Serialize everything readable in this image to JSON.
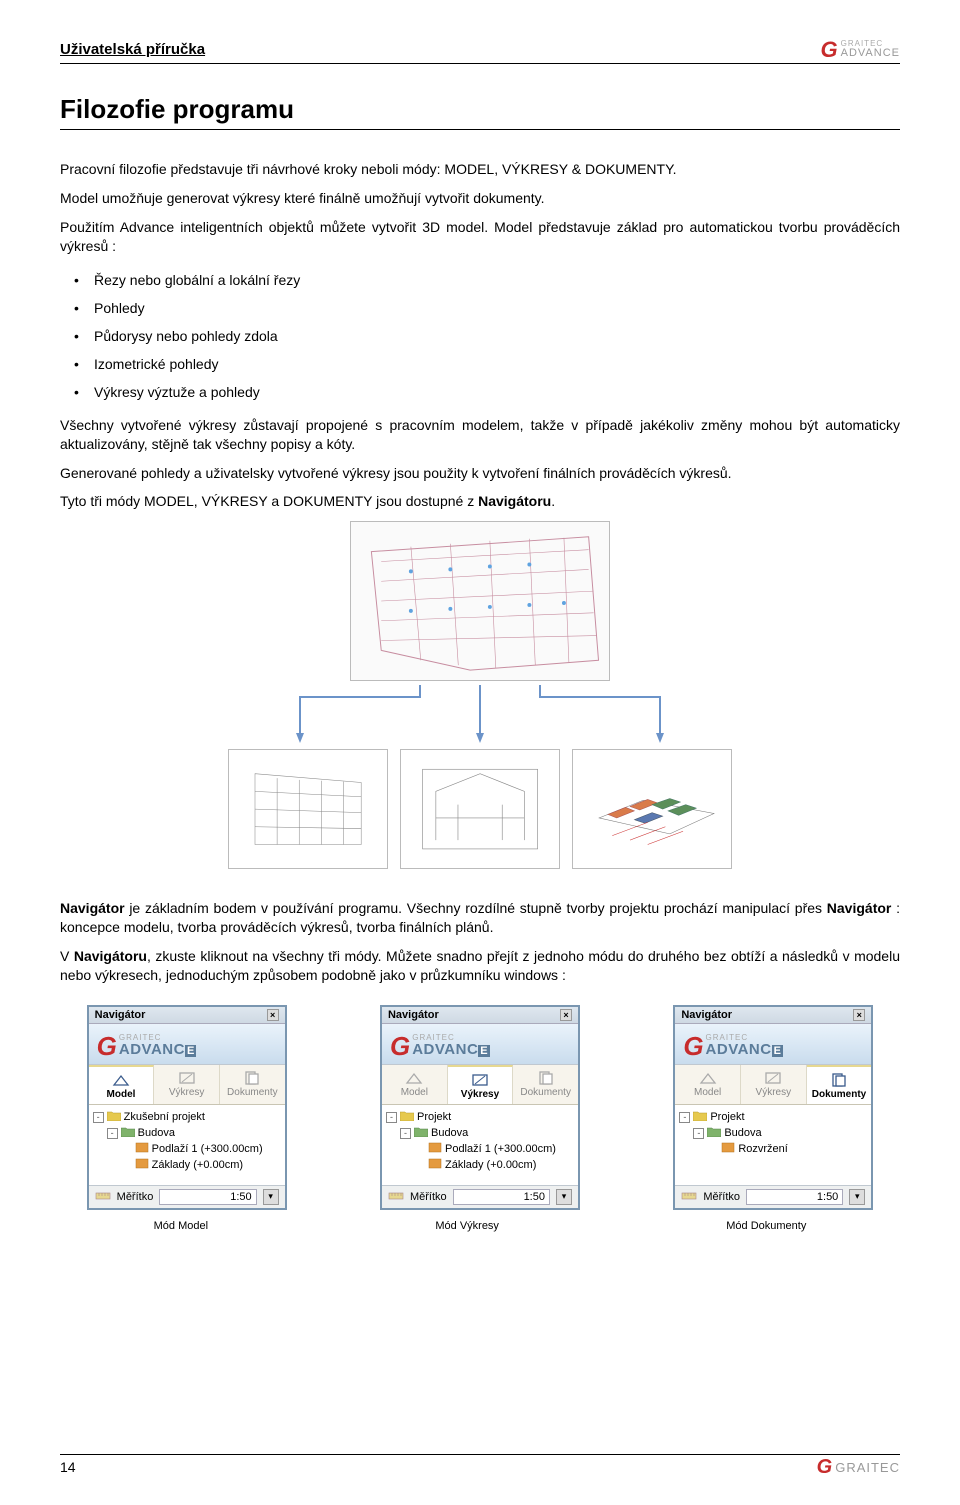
{
  "header": {
    "doc_title": "Uživatelská příručka",
    "brand_small": "GRAITEC",
    "brand_word": "ADVANCE"
  },
  "title": "Filozofie programu",
  "paragraphs": {
    "p1": "Pracovní filozofie představuje tři návrhové kroky neboli módy: MODEL, VÝKRESY & DOKUMENTY.",
    "p2": "Model umožňuje generovat výkresy které finálně umožňují vytvořit dokumenty.",
    "p3": "Použitím Advance inteligentních objektů můžete vytvořit 3D model. Model představuje základ pro automatickou tvorbu prováděcích výkresů :",
    "p4": "Všechny vytvořené výkresy zůstavají propojené s pracovním modelem, takže v případě jakékoliv změny mohou být automaticky aktualizovány, stějně tak všechny popisy a kóty.",
    "p5": "Generované pohledy a uživatelsky vytvořené výkresy jsou použity k vytvoření finálních prováděcích výkresů.",
    "p6": "Tyto tři módy MODEL, VÝKRESY a DOKUMENTY jsou dostupné z Navigátoru.",
    "p7": "Navigátor je základním bodem v používání programu. Všechny rozdílné stupně tvorby projektu prochází manipulací přes Navigátor : koncepce modelu, tvorba prováděcích výkresů, tvorba finálních plánů.",
    "p8": "V Navigátoru, zkuste kliknout na všechny tři módy. Můžete snadno přejít z jednoho módu do druhého bez obtíží a následků v modelu nebo výkresech, jednoduchým způsobem podobně jako v průzkumníku windows :"
  },
  "bullets": [
    "Řezy nebo globální a lokální řezy",
    "Pohledy",
    "Půdorysy nebo pohledy zdola",
    "Izometrické pohledy",
    "Výkresy výztuže a pohledy"
  ],
  "diagram": {
    "top_plan_color": "#c78da0",
    "connector_color": "#6b93c9",
    "thumb_border": "#bbbbbb"
  },
  "nav": {
    "title": "Navigátor",
    "close": "×",
    "tabs": {
      "model": "Model",
      "vykresy": "Výkresy",
      "dokumenty": "Dokumenty"
    },
    "scale_label": "Měřítko",
    "scale_value": "1:50",
    "scale_dropdown": "▾",
    "panel1": {
      "active_tab": "model",
      "tree": [
        {
          "indent": 0,
          "toggle": "-",
          "icon": "folder-yellow",
          "label": "Zkušební projekt"
        },
        {
          "indent": 1,
          "toggle": "-",
          "icon": "folder-green",
          "label": "Budova"
        },
        {
          "indent": 2,
          "toggle": " ",
          "icon": "item-orange",
          "label": "Podlaží 1 (+300.00cm)"
        },
        {
          "indent": 2,
          "toggle": " ",
          "icon": "item-orange",
          "label": "Základy (+0.00cm)"
        }
      ]
    },
    "panel2": {
      "active_tab": "vykresy",
      "tree": [
        {
          "indent": 0,
          "toggle": "-",
          "icon": "folder-yellow",
          "label": "Projekt"
        },
        {
          "indent": 1,
          "toggle": "-",
          "icon": "folder-green",
          "label": "Budova"
        },
        {
          "indent": 2,
          "toggle": " ",
          "icon": "item-orange",
          "label": "Podlaží 1 (+300.00cm)"
        },
        {
          "indent": 2,
          "toggle": " ",
          "icon": "item-orange",
          "label": "Základy (+0.00cm)"
        }
      ]
    },
    "panel3": {
      "active_tab": "dokumenty",
      "tree": [
        {
          "indent": 0,
          "toggle": "-",
          "icon": "folder-yellow",
          "label": "Projekt"
        },
        {
          "indent": 1,
          "toggle": "-",
          "icon": "folder-green",
          "label": "Budova"
        },
        {
          "indent": 2,
          "toggle": " ",
          "icon": "item-orange",
          "label": "Rozvržení"
        }
      ]
    },
    "captions": {
      "c1": "Mód Model",
      "c2": "Mód Výkresy",
      "c3": "Mód Dokumenty"
    }
  },
  "footer": {
    "page_number": "14",
    "brand": "GRAITEC"
  },
  "colors": {
    "folder_yellow": "#e6c94e",
    "folder_green": "#7fb36b",
    "item_orange": "#e49a3f",
    "tab_active_border": "#e6d890",
    "brand_red": "#c72c2c",
    "brand_grey": "#999999",
    "panel_frame": "#7a96b0"
  }
}
